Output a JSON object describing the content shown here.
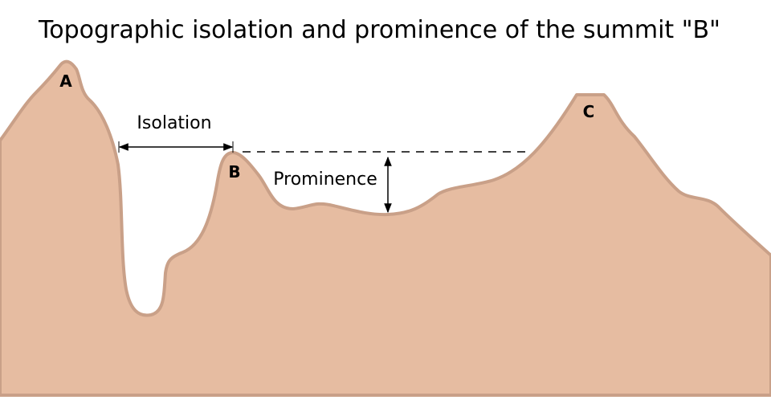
{
  "title": "Topographic isolation and prominence of the summit \"B\"",
  "peaks": [
    {
      "label": "A"
    },
    {
      "label": "B"
    },
    {
      "label": "C"
    }
  ],
  "annotations": {
    "isolation": "Isolation",
    "prominence": "Prominence"
  }
}
